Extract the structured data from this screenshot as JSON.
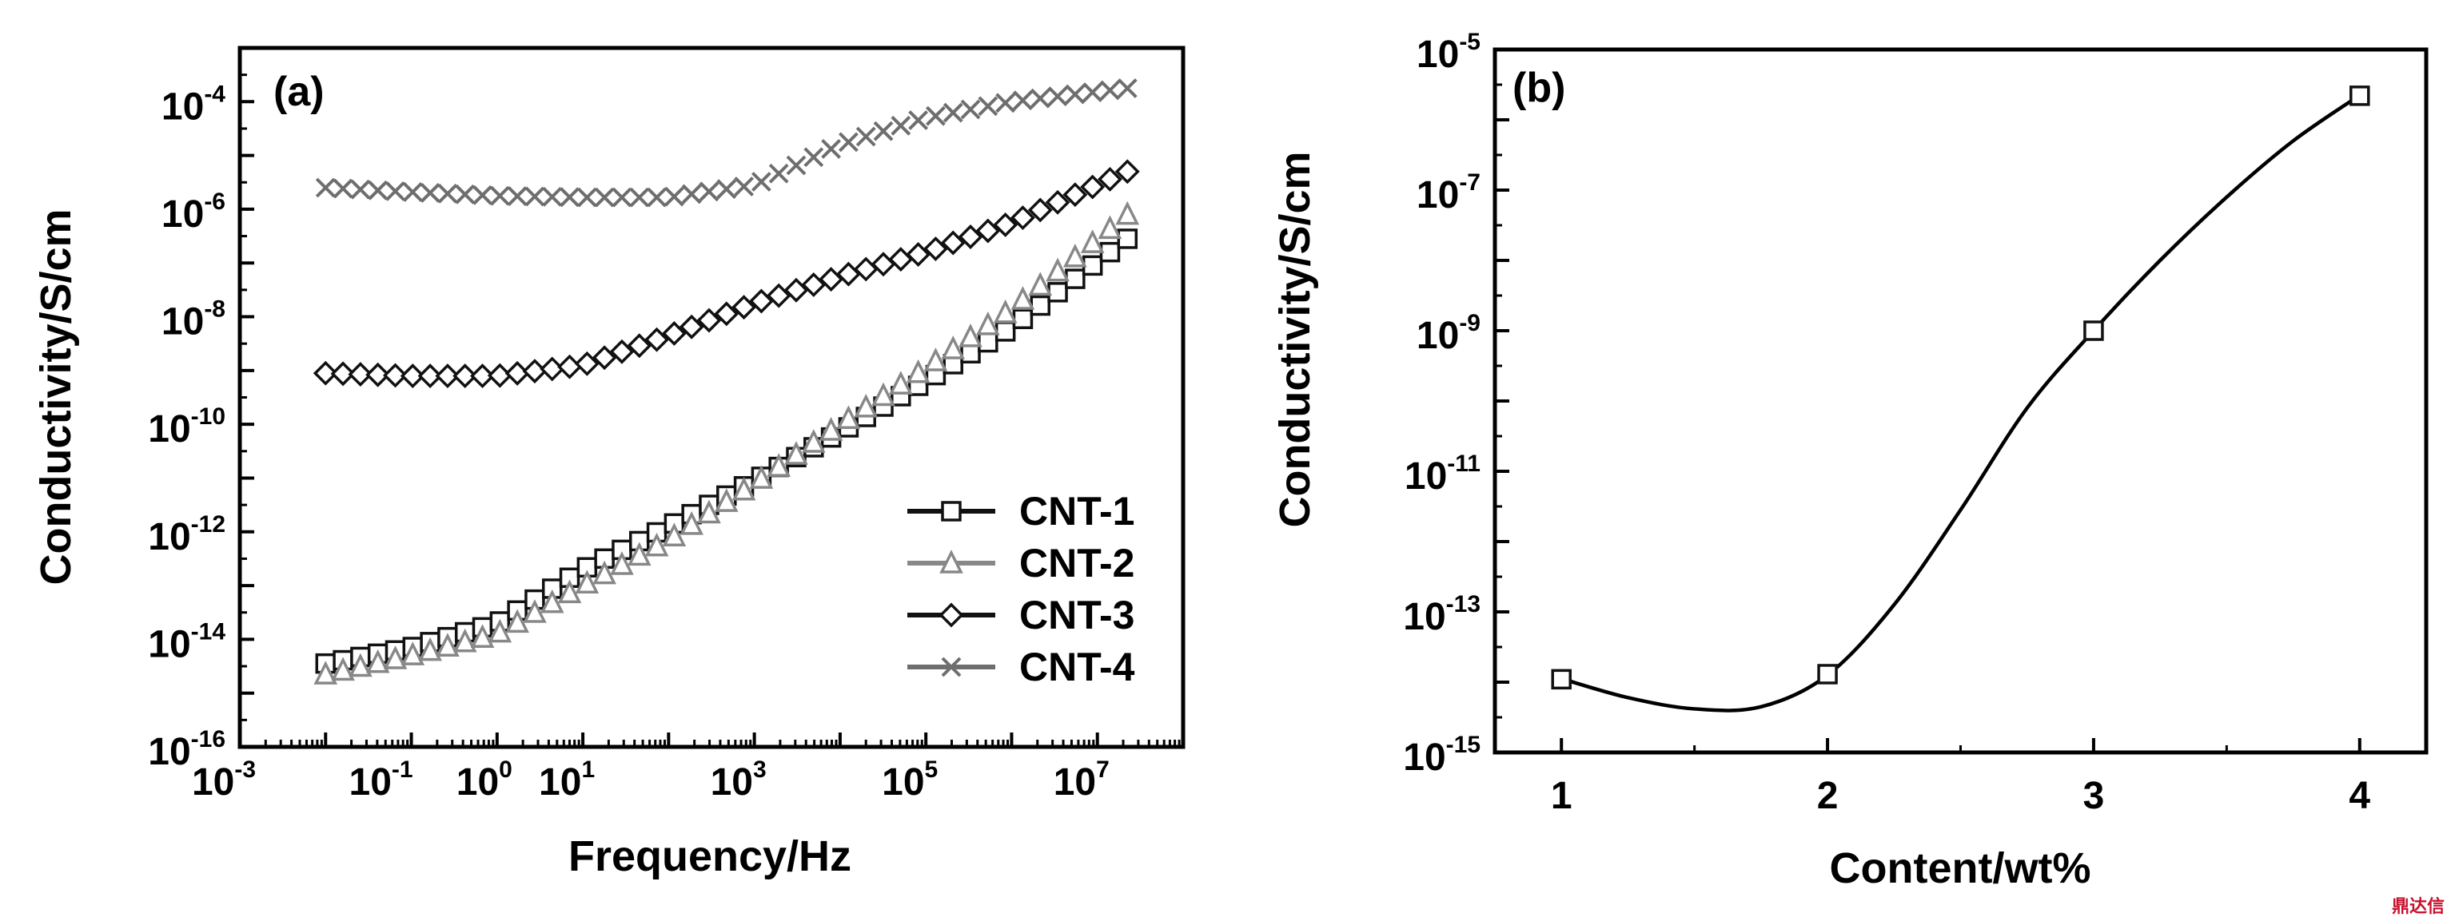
{
  "chart_data": [
    {
      "type": "scatter",
      "panel_label": "(a)",
      "xlabel": "Frequency/Hz",
      "ylabel": "Conductivity/S/cm",
      "x_scale": "log",
      "y_scale": "log",
      "xlim": [
        0.001,
        100000000
      ],
      "ylim": [
        1e-16,
        0.001
      ],
      "x_ticks": [
        {
          "base": "10",
          "exp": "-3",
          "value": 0.001
        },
        {
          "base": "10",
          "exp": "-1",
          "value": 0.1
        },
        {
          "base": "10",
          "exp": "0",
          "value": 1
        },
        {
          "base": "10",
          "exp": "1",
          "value": 10
        },
        {
          "base": "10",
          "exp": "3",
          "value": 1000
        },
        {
          "base": "10",
          "exp": "5",
          "value": 100000
        },
        {
          "base": "10",
          "exp": "7",
          "value": 10000000
        }
      ],
      "y_ticks": [
        {
          "base": "10",
          "exp": "-4",
          "value": 0.0001
        },
        {
          "base": "10",
          "exp": "-6",
          "value": 1e-06
        },
        {
          "base": "10",
          "exp": "-8",
          "value": 1e-08
        },
        {
          "base": "10",
          "exp": "-10",
          "value": 1e-10
        },
        {
          "base": "10",
          "exp": "-12",
          "value": 1e-12
        },
        {
          "base": "10",
          "exp": "-14",
          "value": 1e-14
        },
        {
          "base": "10",
          "exp": "-16",
          "value": 1e-16
        }
      ],
      "legend_position": "bottom-right",
      "series": [
        {
          "name": "CNT-1",
          "marker": "square",
          "color": "#111111",
          "anchors_log": [
            [
              -2,
              -14.45
            ],
            [
              -1,
              -14.15
            ],
            [
              0,
              -13.7
            ],
            [
              1,
              -12.7
            ],
            [
              2,
              -11.9
            ],
            [
              3,
              -11.05
            ],
            [
              4,
              -10.15
            ],
            [
              5,
              -9.2
            ],
            [
              6,
              -8.2
            ],
            [
              7.35,
              -6.55
            ]
          ]
        },
        {
          "name": "CNT-2",
          "marker": "triangle",
          "color": "#888888",
          "anchors_log": [
            [
              -2,
              -14.65
            ],
            [
              -1,
              -14.3
            ],
            [
              0,
              -13.9
            ],
            [
              1,
              -13.0
            ],
            [
              2,
              -12.15
            ],
            [
              3,
              -11.1
            ],
            [
              4,
              -10.0
            ],
            [
              5,
              -8.95
            ],
            [
              6,
              -7.85
            ],
            [
              7.35,
              -6.1
            ]
          ]
        },
        {
          "name": "CNT-3",
          "marker": "diamond",
          "color": "#111111",
          "anchors_log": [
            [
              -2,
              -9.05
            ],
            [
              -1,
              -9.1
            ],
            [
              0,
              -9.1
            ],
            [
              1,
              -8.9
            ],
            [
              2,
              -8.35
            ],
            [
              3,
              -7.75
            ],
            [
              4,
              -7.25
            ],
            [
              5,
              -6.8
            ],
            [
              6,
              -6.25
            ],
            [
              7.35,
              -5.3
            ]
          ]
        },
        {
          "name": "CNT-4",
          "marker": "cross",
          "color": "#6e6e6e",
          "anchors_log": [
            [
              -2,
              -5.6
            ],
            [
              -1,
              -5.68
            ],
            [
              0,
              -5.75
            ],
            [
              1,
              -5.78
            ],
            [
              2,
              -5.78
            ],
            [
              3,
              -5.55
            ],
            [
              4,
              -4.8
            ],
            [
              5,
              -4.3
            ],
            [
              6,
              -4.0
            ],
            [
              7.35,
              -3.75
            ]
          ]
        }
      ]
    },
    {
      "type": "line",
      "panel_label": "(b)",
      "xlabel": "Content/wt%",
      "ylabel": "Conductivity/S/cm",
      "y_scale": "log",
      "xlim": [
        0.75,
        4.25
      ],
      "ylim": [
        1e-15,
        1e-05
      ],
      "x_ticks": [
        "1",
        "2",
        "3",
        "4"
      ],
      "y_ticks": [
        {
          "base": "10",
          "exp": "-5",
          "value": 1e-05
        },
        {
          "base": "10",
          "exp": "-7",
          "value": 1e-07
        },
        {
          "base": "10",
          "exp": "-9",
          "value": 1e-09
        },
        {
          "base": "10",
          "exp": "-11",
          "value": 1e-11
        },
        {
          "base": "10",
          "exp": "-13",
          "value": 1e-13
        },
        {
          "base": "10",
          "exp": "-15",
          "value": 1e-15
        }
      ],
      "x": [
        1,
        2,
        3,
        4
      ],
      "y": [
        1.1e-14,
        1.3e-14,
        1e-09,
        2.2e-06
      ],
      "curve_log": [
        [
          1,
          -13.95
        ],
        [
          1.25,
          -14.22
        ],
        [
          1.5,
          -14.38
        ],
        [
          1.75,
          -14.35
        ],
        [
          2,
          -13.9
        ],
        [
          2.25,
          -12.9
        ],
        [
          2.5,
          -11.55
        ],
        [
          2.75,
          -10.1
        ],
        [
          3,
          -9.0
        ],
        [
          3.25,
          -8.0
        ],
        [
          3.5,
          -7.1
        ],
        [
          3.75,
          -6.3
        ],
        [
          4,
          -5.65
        ]
      ]
    }
  ],
  "watermark": "鼎达信"
}
